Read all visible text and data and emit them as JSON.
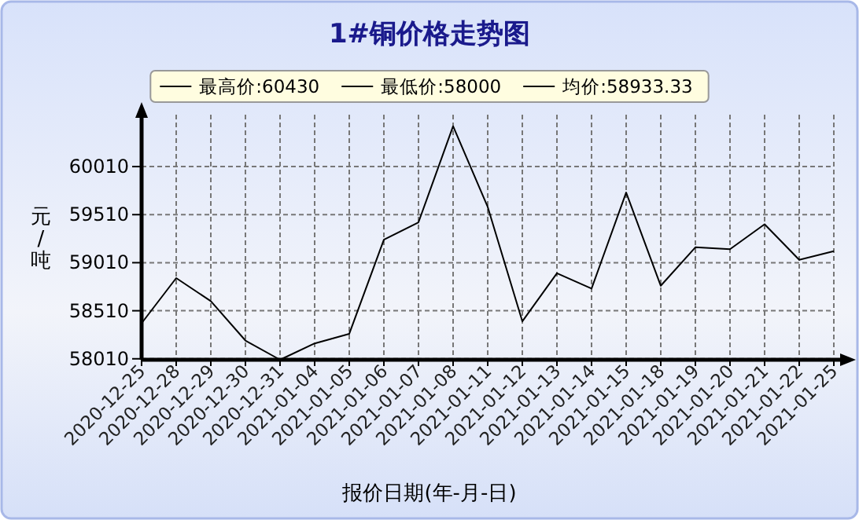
{
  "chart_data": {
    "type": "line",
    "title": "1#铜价格走势图",
    "xlabel": "报价日期(年-月-日)",
    "ylabel": "元/吨",
    "annotations": [
      "最高价:60430",
      "最低价:58000",
      "均价:58933.33"
    ],
    "categories": [
      "2020-12-25",
      "2020-12-28",
      "2020-12-29",
      "2020-12-30",
      "2020-12-31",
      "2021-01-04",
      "2021-01-05",
      "2021-01-06",
      "2021-01-07",
      "2021-01-08",
      "2021-01-11",
      "2021-01-12",
      "2021-01-13",
      "2021-01-14",
      "2021-01-15",
      "2021-01-18",
      "2021-01-19",
      "2021-01-20",
      "2021-01-21",
      "2021-01-22",
      "2021-01-25"
    ],
    "series": [
      {
        "color": "#000000",
        "values": [
          58380,
          58850,
          58610,
          58200,
          58000,
          58170,
          58270,
          59250,
          59430,
          60430,
          59590,
          58400,
          58900,
          58740,
          59740,
          58770,
          59170,
          59150,
          59410,
          59040,
          59130
        ]
      }
    ],
    "ylim": [
      58000,
      60550
    ],
    "yticks": [
      58010,
      58510,
      59010,
      59510,
      60010
    ],
    "grid": true,
    "line_style": "solid",
    "marker": "none"
  }
}
